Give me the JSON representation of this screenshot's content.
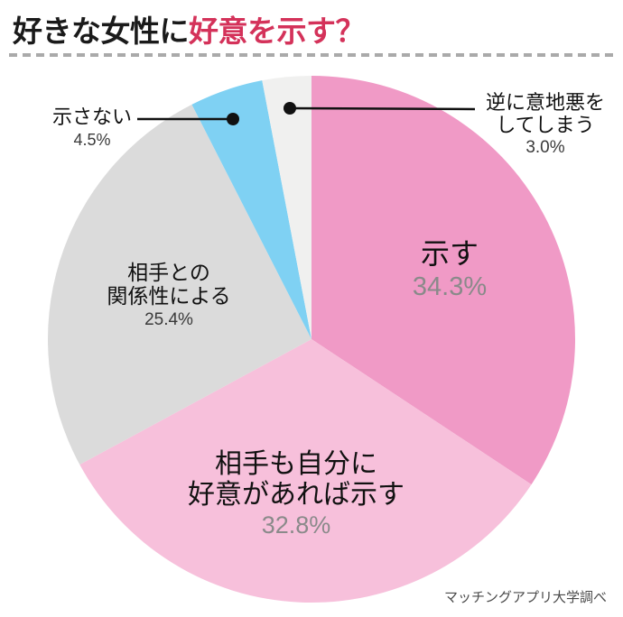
{
  "header": {
    "title_black": "好きな女性に",
    "title_red": "好意を示す？",
    "title_red_color": "#d4325a"
  },
  "footer": {
    "source": "マッチングアプリ大学調べ"
  },
  "chart_data": {
    "type": "pie",
    "title": "好きな女性に好意を示す？",
    "start_position": "12-o-clock-clockwise",
    "legend_position": "labels-on-chart",
    "slices": [
      {
        "label": "示す",
        "value": 34.3,
        "pct_label": "34.3%",
        "color": "#f09ac6",
        "lines": [
          "示す"
        ]
      },
      {
        "label": "相手も自分に好意があれば示す",
        "value": 32.8,
        "pct_label": "32.8%",
        "color": "#f7c0db",
        "lines": [
          "相手も自分に",
          "好意があれば示す"
        ]
      },
      {
        "label": "相手との関係性による",
        "value": 25.4,
        "pct_label": "25.4%",
        "color": "#dbdbdb",
        "lines": [
          "相手との",
          "関係性による"
        ]
      },
      {
        "label": "示さない",
        "value": 4.5,
        "pct_label": "4.5%",
        "color": "#7fd1f3",
        "lines": [
          "示さない"
        ]
      },
      {
        "label": "逆に意地悪をしてしまう",
        "value": 3.0,
        "pct_label": "3.0%",
        "color": "#f0f0ef",
        "lines": [
          "逆に意地悪を",
          "してしまう"
        ]
      }
    ]
  }
}
